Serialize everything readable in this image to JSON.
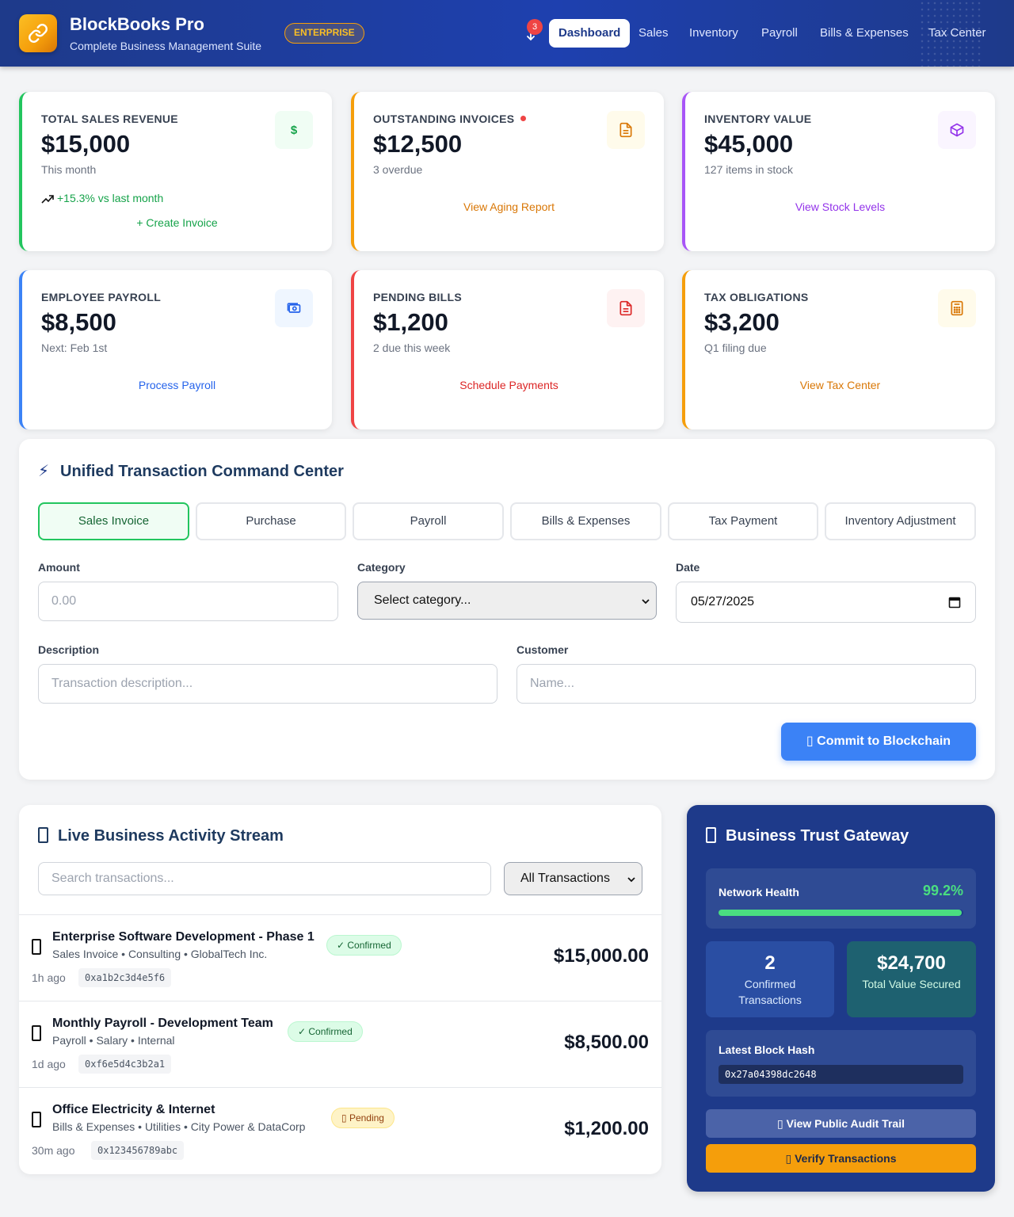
{
  "header": {
    "brand_title": "BlockBooks Pro",
    "brand_subtitle": "Complete Business Management Suite",
    "plan_badge": "ENTERPRISE",
    "notification_count": "3",
    "nav": [
      "Dashboard",
      "Sales",
      "Inventory",
      "Payroll",
      "Bills & Expenses",
      "Tax Center"
    ],
    "active_nav": "Dashboard"
  },
  "stats": [
    {
      "label": "TOTAL SALES REVENUE",
      "value": "$15,000",
      "sub": "This month",
      "trend": "+15.3% vs last month",
      "link": "+ Create Invoice",
      "icon": "dollar-icon",
      "accent": "#22c55e"
    },
    {
      "label": "OUTSTANDING INVOICES",
      "value": "$12,500",
      "sub": "3 overdue",
      "link": "View Aging Report",
      "icon": "document-icon",
      "accent": "#f59e0b"
    },
    {
      "label": "INVENTORY VALUE",
      "value": "$45,000",
      "sub": "127 items in stock",
      "link": "View Stock Levels",
      "icon": "cube-icon",
      "accent": "#a855f7"
    },
    {
      "label": "EMPLOYEE PAYROLL",
      "value": "$8,500",
      "sub": "Next: Feb 1st",
      "link": "Process Payroll",
      "icon": "cash-icon",
      "accent": "#3b82f6"
    },
    {
      "label": "PENDING BILLS",
      "value": "$1,200",
      "sub": "2 due this week",
      "link": "Schedule Payments",
      "icon": "bill-icon",
      "accent": "#ef4444"
    },
    {
      "label": "TAX OBLIGATIONS",
      "value": "$3,200",
      "sub": "Q1 filing due",
      "link": "View Tax Center",
      "icon": "calculator-icon",
      "accent": "#f59e0b"
    }
  ],
  "command_center": {
    "title": "Unified Transaction Command Center",
    "title_icon": "⚡",
    "tabs": [
      "Sales Invoice",
      "Purchase",
      "Payroll",
      "Bills & Expenses",
      "Tax Payment",
      "Inventory Adjustment"
    ],
    "active_tab": "Sales Invoice",
    "amount_label": "Amount",
    "amount_placeholder": "0.00",
    "category_label": "Category",
    "category_value": "Select category...",
    "date_label": "Date",
    "date_value": "05/27/2025",
    "description_label": "Description",
    "description_placeholder": "Transaction description...",
    "customer_label": "Customer",
    "customer_placeholder": "Name...",
    "commit_label": "Commit to Blockchain",
    "commit_icon": "▯"
  },
  "activity": {
    "title": "Live Business Activity Stream",
    "search_placeholder": "Search transactions...",
    "filter_value": "All Transactions",
    "transactions": [
      {
        "title": "Enterprise Software Development - Phase 1",
        "meta": "Sales Invoice • Consulting • GlobalTech Inc.",
        "status": "✓ Confirmed",
        "time": "1h ago",
        "hash": "0xa1b2c3d4e5f6",
        "amount": "$15,000.00"
      },
      {
        "title": "Monthly Payroll - Development Team",
        "meta": "Payroll • Salary • Internal",
        "status": "✓ Confirmed",
        "time": "1d ago",
        "hash": "0xf6e5d4c3b2a1",
        "amount": "$8,500.00"
      },
      {
        "title": "Office Electricity & Internet",
        "meta": "Bills & Expenses • Utilities • City Power & DataCorp",
        "status": "▯ Pending",
        "time": "30m ago",
        "hash": "0x123456789abc",
        "amount": "$1,200.00"
      }
    ]
  },
  "gateway": {
    "title": "Business Trust Gateway",
    "network_health_label": "Network Health",
    "network_health_value": "99.2%",
    "network_health_fraction": 0.992,
    "confirmed_count": "2",
    "confirmed_label": "Confirmed Transactions",
    "total_value": "$24,700",
    "total_value_label": "Total Value Secured",
    "latest_hash_label": "Latest Block Hash",
    "latest_hash": "0x27a04398dc2648",
    "audit_button": "▯ View Public Audit Trail",
    "verify_button": "▯ Verify Transactions"
  },
  "colors": {
    "brand": "#1e3a8a",
    "accent": "#f59e0b",
    "primary_button": "#3b82f6",
    "success": "#22c55e"
  }
}
